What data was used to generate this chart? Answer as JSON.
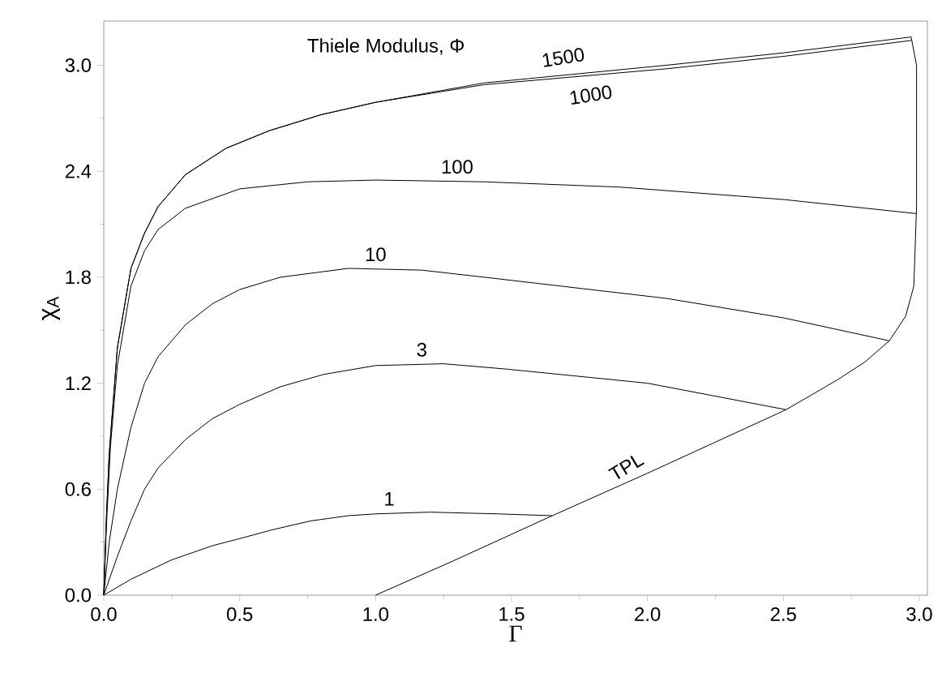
{
  "chart_data": {
    "type": "line",
    "xlabel": "Γ",
    "ylabel": "χ$_{A}$",
    "annotations": [
      "Thiele Modulus, Φ"
    ],
    "xlim": [
      0,
      3.03
    ],
    "ylim": [
      0,
      3.25
    ],
    "xticks": [
      {
        "value": 0,
        "label": "0.0"
      },
      0.5,
      {
        "value": 1,
        "label": "1.0"
      },
      1.5,
      {
        "value": 2,
        "label": "2.0"
      },
      2.5,
      {
        "value": 3,
        "label": "3.0"
      }
    ],
    "yticks": [
      {
        "value": 0,
        "label": "0.0"
      },
      0.6,
      1.2,
      1.8,
      2.4,
      {
        "value": 3,
        "label": "3.0"
      }
    ],
    "marker": "none",
    "line_style": "solid",
    "series": [
      {
        "name": "1",
        "color": "#000000",
        "x": [
          0,
          0.1,
          0.25,
          0.4,
          0.5,
          0.62,
          0.76,
          0.9,
          1.0,
          1.2,
          1.45,
          1.65
        ],
        "values": [
          0,
          0.09,
          0.2,
          0.28,
          0.32,
          0.37,
          0.42,
          0.45,
          0.46,
          0.47,
          0.46,
          0.45
        ]
      },
      {
        "name": "3",
        "color": "#000000",
        "x": [
          0,
          0.05,
          0.1,
          0.15,
          0.2,
          0.3,
          0.4,
          0.5,
          0.65,
          0.81,
          1.0,
          1.25,
          1.48,
          2.0,
          2.51
        ],
        "values": [
          0,
          0.22,
          0.42,
          0.6,
          0.72,
          0.88,
          1.0,
          1.08,
          1.18,
          1.25,
          1.3,
          1.31,
          1.28,
          1.2,
          1.05
        ]
      },
      {
        "name": "10",
        "color": "#000000",
        "x": [
          0,
          0.02,
          0.05,
          0.1,
          0.15,
          0.2,
          0.3,
          0.4,
          0.5,
          0.65,
          0.9,
          1.17,
          1.4,
          2.07,
          2.5,
          2.89
        ],
        "values": [
          0,
          0.3,
          0.6,
          0.95,
          1.2,
          1.35,
          1.53,
          1.65,
          1.73,
          1.8,
          1.85,
          1.84,
          1.8,
          1.68,
          1.57,
          1.44
        ]
      },
      {
        "name": "100",
        "color": "#000000",
        "x": [
          0,
          0.01,
          0.025,
          0.05,
          0.1,
          0.15,
          0.2,
          0.3,
          0.5,
          0.75,
          1.0,
          1.4,
          1.9,
          2.5,
          2.99
        ],
        "values": [
          0,
          0.4,
          0.85,
          1.3,
          1.75,
          1.95,
          2.07,
          2.19,
          2.3,
          2.34,
          2.35,
          2.34,
          2.31,
          2.24,
          2.16
        ]
      },
      {
        "name": "1000",
        "color": "#000000",
        "x": [
          0,
          0.01,
          0.02,
          0.05,
          0.1,
          0.15,
          0.2,
          0.3,
          0.45,
          0.61,
          0.8,
          1.0,
          1.4,
          2.07,
          2.5,
          2.97
        ],
        "values": [
          0,
          0.45,
          0.8,
          1.4,
          1.85,
          2.05,
          2.2,
          2.38,
          2.53,
          2.63,
          2.72,
          2.79,
          2.89,
          2.98,
          3.05,
          3.14
        ]
      },
      {
        "name": "1500",
        "color": "#000000",
        "x": [
          0,
          0.01,
          0.02,
          0.05,
          0.1,
          0.15,
          0.2,
          0.3,
          0.45,
          0.61,
          0.8,
          1.0,
          1.4,
          2.07,
          2.5,
          2.97
        ],
        "values": [
          0,
          0.45,
          0.8,
          1.4,
          1.85,
          2.05,
          2.2,
          2.38,
          2.53,
          2.63,
          2.72,
          2.79,
          2.9,
          3.0,
          3.07,
          3.16
        ]
      },
      {
        "name": "TPL",
        "color": "#000000",
        "x": [
          1.0,
          1.28,
          1.65,
          2.0,
          2.51,
          2.7,
          2.8,
          2.89,
          2.95,
          2.98,
          2.99,
          2.99,
          2.97
        ],
        "values": [
          0,
          0.19,
          0.45,
          0.69,
          1.05,
          1.22,
          1.32,
          1.44,
          1.58,
          1.75,
          2.2,
          3.0,
          3.16
        ]
      }
    ]
  }
}
